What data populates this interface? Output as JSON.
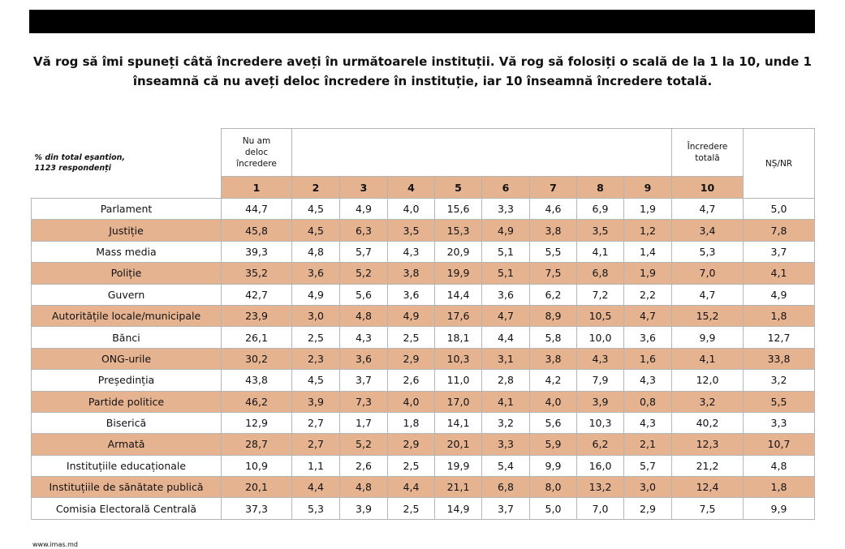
{
  "header": {
    "title_lines": [
      "Vă rog să îmi spuneți câtă încredere aveți în următoarele instituții. Vă rog să folosiți o scală de la 1 la 10, unde 1",
      "înseamnă că nu aveți deloc încredere în instituție, iar 10 înseamnă încredere totală."
    ]
  },
  "table": {
    "note_lines": [
      "% din total eșantion,",
      "1123 respondenți"
    ],
    "low_label": "Nu am deloc încredere",
    "high_label": "Încredere totală",
    "dk_label": "NȘ/NR",
    "scale": [
      "1",
      "2",
      "3",
      "4",
      "5",
      "6",
      "7",
      "8",
      "9",
      "10"
    ],
    "rows": [
      [
        "Parlament",
        "44,7",
        "4,5",
        "4,9",
        "4,0",
        "15,6",
        "3,3",
        "4,6",
        "6,9",
        "1,9",
        "4,7",
        "5,0"
      ],
      [
        "Justiție",
        "45,8",
        "4,5",
        "6,3",
        "3,5",
        "15,3",
        "4,9",
        "3,8",
        "3,5",
        "1,2",
        "3,4",
        "7,8"
      ],
      [
        "Mass media",
        "39,3",
        "4,8",
        "5,7",
        "4,3",
        "20,9",
        "5,1",
        "5,5",
        "4,1",
        "1,4",
        "5,3",
        "3,7"
      ],
      [
        "Poliție",
        "35,2",
        "3,6",
        "5,2",
        "3,8",
        "19,9",
        "5,1",
        "7,5",
        "6,8",
        "1,9",
        "7,0",
        "4,1"
      ],
      [
        "Guvern",
        "42,7",
        "4,9",
        "5,6",
        "3,6",
        "14,4",
        "3,6",
        "6,2",
        "7,2",
        "2,2",
        "4,7",
        "4,9"
      ],
      [
        "Autoritățile locale/municipale",
        "23,9",
        "3,0",
        "4,8",
        "4,9",
        "17,6",
        "4,7",
        "8,9",
        "10,5",
        "4,7",
        "15,2",
        "1,8"
      ],
      [
        "Bănci",
        "26,1",
        "2,5",
        "4,3",
        "2,5",
        "18,1",
        "4,4",
        "5,8",
        "10,0",
        "3,6",
        "9,9",
        "12,7"
      ],
      [
        "ONG-urile",
        "30,2",
        "2,3",
        "3,6",
        "2,9",
        "10,3",
        "3,1",
        "3,8",
        "4,3",
        "1,6",
        "4,1",
        "33,8"
      ],
      [
        "Președinția",
        "43,8",
        "4,5",
        "3,7",
        "2,6",
        "11,0",
        "2,8",
        "4,2",
        "7,9",
        "4,3",
        "12,0",
        "3,2"
      ],
      [
        "Partide politice",
        "46,2",
        "3,9",
        "7,3",
        "4,0",
        "17,0",
        "4,1",
        "4,0",
        "3,9",
        "0,8",
        "3,2",
        "5,5"
      ],
      [
        "Biserică",
        "12,9",
        "2,7",
        "1,7",
        "1,8",
        "14,1",
        "3,2",
        "5,6",
        "10,3",
        "4,3",
        "40,2",
        "3,3"
      ],
      [
        "Armată",
        "28,7",
        "2,7",
        "5,2",
        "2,9",
        "20,1",
        "3,3",
        "5,9",
        "6,2",
        "2,1",
        "12,3",
        "10,7"
      ],
      [
        "Instituțiile educaționale",
        "10,9",
        "1,1",
        "2,6",
        "2,5",
        "19,9",
        "5,4",
        "9,9",
        "16,0",
        "5,7",
        "21,2",
        "4,8"
      ],
      [
        "Instituțiile de sănătate publică",
        "20,1",
        "4,4",
        "4,8",
        "4,4",
        "21,1",
        "6,8",
        "8,0",
        "13,2",
        "3,0",
        "12,4",
        "1,8"
      ],
      [
        "Comisia Electorală Centrală",
        "37,3",
        "5,3",
        "3,9",
        "2,5",
        "14,9",
        "3,7",
        "5,0",
        "7,0",
        "2,9",
        "7,5",
        "9,9"
      ]
    ]
  },
  "footer": {
    "url": "www.imas.md"
  }
}
